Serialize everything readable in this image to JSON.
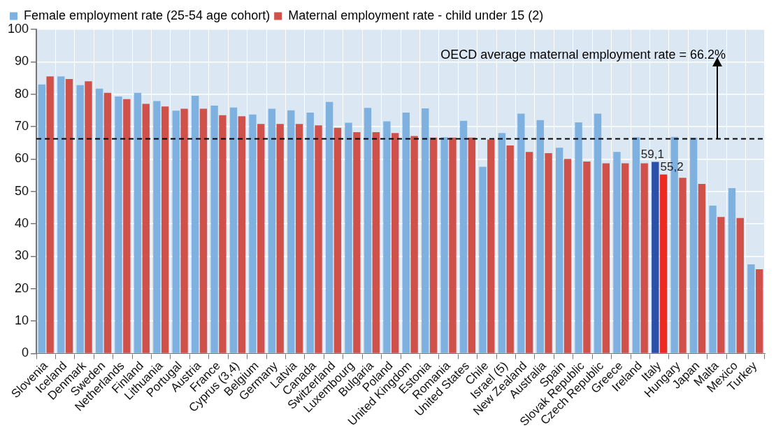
{
  "chart_data": {
    "type": "bar",
    "categories": [
      "Slovenia",
      "Iceland",
      "Denmark",
      "Sweden",
      "Netherlands",
      "Finland",
      "Lithuania",
      "Portugal",
      "Austria",
      "France",
      "Cyprus (3,4)",
      "Belgium",
      "Germany",
      "Latvia",
      "Canada",
      "Switzerland",
      "Luxembourg",
      "Bulgaria",
      "Poland",
      "United Kingdom",
      "Estonia",
      "Romania",
      "United States",
      "Chile",
      "Israel (5)",
      "New Zealand",
      "Australia",
      "Spain",
      "Slovak Republic",
      "Czech Republic",
      "Greece",
      "Ireland",
      "Italy",
      "Hungary",
      "Japan",
      "Malta",
      "Mexico",
      "Turkey"
    ],
    "series": [
      {
        "name": "Female employment rate (25-54 age cohort)",
        "color": "#7fb1e0",
        "colors": [
          "#7fb1e0",
          "#7fb1e0",
          "#7fb1e0",
          "#7fb1e0",
          "#7fb1e0",
          "#7fb1e0",
          "#7fb1e0",
          "#7fb1e0",
          "#7fb1e0",
          "#7fb1e0",
          "#7fb1e0",
          "#7fb1e0",
          "#7fb1e0",
          "#7fb1e0",
          "#7fb1e0",
          "#7fb1e0",
          "#7fb1e0",
          "#7fb1e0",
          "#7fb1e0",
          "#7fb1e0",
          "#7fb1e0",
          "#7fb1e0",
          "#7fb1e0",
          "#7fb1e0",
          "#7fb1e0",
          "#7fb1e0",
          "#7fb1e0",
          "#7fb1e0",
          "#7fb1e0",
          "#7fb1e0",
          "#7fb1e0",
          "#7fb1e0",
          "#2a50a8",
          "#7fb1e0",
          "#7fb1e0",
          "#7fb1e0",
          "#7fb1e0",
          "#7fb1e0"
        ],
        "values": [
          83,
          85.5,
          82.8,
          81.7,
          79.3,
          80.4,
          77.9,
          74.9,
          79.5,
          76.5,
          75.9,
          73.7,
          75.5,
          75,
          74.3,
          77.6,
          71.2,
          75.8,
          71.6,
          74.3,
          75.6,
          66.7,
          71.8,
          57.6,
          68,
          74,
          72,
          63.5,
          71.3,
          74,
          62.2,
          66.7,
          59.1,
          66.8,
          66.6,
          45.6,
          51,
          27.5
        ],
        "value_labels": [
          null,
          null,
          null,
          null,
          null,
          null,
          null,
          null,
          null,
          null,
          null,
          null,
          null,
          null,
          null,
          null,
          null,
          null,
          null,
          null,
          null,
          null,
          null,
          null,
          null,
          null,
          null,
          null,
          null,
          null,
          null,
          null,
          "59,1",
          null,
          null,
          null,
          null,
          null
        ]
      },
      {
        "name": "Maternal employment rate - child under 15 (2)",
        "color": "#d0504a",
        "colors": [
          "#d0504a",
          "#d0504a",
          "#d0504a",
          "#d0504a",
          "#d0504a",
          "#d0504a",
          "#d0504a",
          "#d0504a",
          "#d0504a",
          "#d0504a",
          "#d0504a",
          "#d0504a",
          "#d0504a",
          "#d0504a",
          "#d0504a",
          "#d0504a",
          "#d0504a",
          "#d0504a",
          "#d0504a",
          "#d0504a",
          "#d0504a",
          "#d0504a",
          "#d0504a",
          "#d0504a",
          "#d0504a",
          "#d0504a",
          "#d0504a",
          "#d0504a",
          "#d0504a",
          "#d0504a",
          "#d0504a",
          "#d0504a",
          "#ee2a1e",
          "#d0504a",
          "#d0504a",
          "#d0504a",
          "#d0504a",
          "#d0504a"
        ],
        "values": [
          85.5,
          84.7,
          84,
          80.4,
          78.5,
          77,
          76.2,
          75.5,
          75.5,
          73.5,
          73.2,
          70.8,
          70.8,
          70.8,
          70.4,
          69.6,
          68.3,
          68.3,
          68,
          67.1,
          66.6,
          66.6,
          66.6,
          66,
          64.2,
          62.2,
          61.8,
          60,
          59.2,
          58.7,
          58.7,
          58.7,
          55.2,
          54.2,
          52.3,
          42.1,
          41.8,
          26
        ],
        "value_labels": [
          null,
          null,
          null,
          null,
          null,
          null,
          null,
          null,
          null,
          null,
          null,
          null,
          null,
          null,
          null,
          null,
          null,
          null,
          null,
          null,
          null,
          null,
          null,
          null,
          null,
          null,
          null,
          null,
          null,
          null,
          null,
          null,
          "55,2",
          null,
          null,
          null,
          null,
          null
        ]
      }
    ],
    "ylim": [
      0,
      100
    ],
    "yticks": [
      0,
      10,
      20,
      30,
      40,
      50,
      60,
      70,
      80,
      90,
      100
    ],
    "grid": true,
    "legend": "top left",
    "ref_lines": [
      {
        "axis": "y",
        "value": 66.2,
        "label": "OECD average maternal employment rate = 66.2%",
        "color": "#000000",
        "line_style": "dashed"
      }
    ]
  }
}
